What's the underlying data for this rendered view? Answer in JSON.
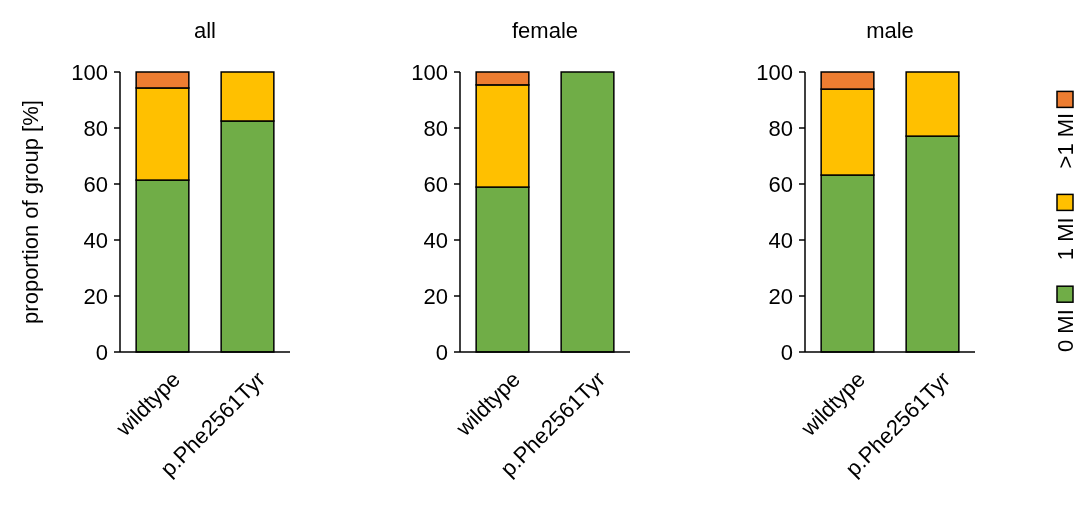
{
  "chart_data": [
    {
      "type": "bar",
      "title": "all",
      "ylabel": "proportion of group [%]",
      "categories": [
        "wildtype",
        "p.Phe2561Tyr"
      ],
      "stacked": true,
      "ylim": [
        0,
        100
      ],
      "yticks": [
        0,
        20,
        40,
        60,
        80,
        100
      ],
      "grid": false,
      "legend": false,
      "series": [
        {
          "color": "#70ad47",
          "values": [
            61.4,
            82.5
          ]
        },
        {
          "color": "#ffc000",
          "values": [
            32.9,
            17.5
          ]
        },
        {
          "color": "#ed7d31",
          "values": [
            5.7,
            0
          ]
        }
      ]
    },
    {
      "type": "bar",
      "title": "female",
      "categories": [
        "wildtype",
        "p.Phe2561Tyr"
      ],
      "stacked": true,
      "ylim": [
        0,
        100
      ],
      "yticks": [
        0,
        20,
        40,
        60,
        80,
        100
      ],
      "grid": false,
      "legend": false,
      "series": [
        {
          "color": "#70ad47",
          "values": [
            58.9,
            100
          ]
        },
        {
          "color": "#ffc000",
          "values": [
            36.5,
            0
          ]
        },
        {
          "color": "#ed7d31",
          "values": [
            4.6,
            0
          ]
        }
      ]
    },
    {
      "type": "bar",
      "title": "male",
      "categories": [
        "wildtype",
        "p.Phe2561Tyr"
      ],
      "stacked": true,
      "ylim": [
        0,
        100
      ],
      "yticks": [
        0,
        20,
        40,
        60,
        80,
        100
      ],
      "grid": false,
      "legend": "right",
      "series": [
        {
          "name": "0 MI",
          "color": "#70ad47",
          "values": [
            63.2,
            77.1
          ]
        },
        {
          "name": "1 MI",
          "color": "#ffc000",
          "values": [
            30.7,
            22.9
          ]
        },
        {
          "name": ">1 MI",
          "color": "#ed7d31",
          "values": [
            6.1,
            0
          ]
        }
      ]
    }
  ]
}
